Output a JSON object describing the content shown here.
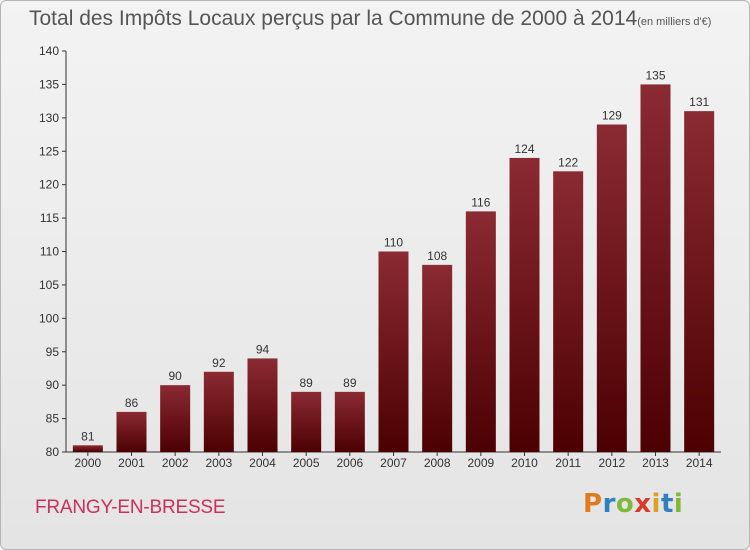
{
  "chart_data": {
    "type": "bar",
    "title": "Total des Impôts Locaux perçus par la Commune de 2000 à 2014",
    "title_unit": "(en milliers d'€)",
    "categories": [
      "2000",
      "2001",
      "2002",
      "2003",
      "2004",
      "2005",
      "2006",
      "2007",
      "2008",
      "2009",
      "2010",
      "2011",
      "2012",
      "2013",
      "2014"
    ],
    "values": [
      81,
      86,
      90,
      92,
      94,
      89,
      89,
      110,
      108,
      116,
      124,
      122,
      129,
      135,
      131
    ],
    "ylim": [
      80,
      140
    ],
    "yticks": [
      80,
      85,
      90,
      95,
      100,
      105,
      110,
      115,
      120,
      125,
      130,
      135,
      140
    ],
    "xlabel": "",
    "ylabel": "",
    "grid": false,
    "bar_color": "#7a1a1f"
  },
  "footer": {
    "commune": "FRANGY-EN-BRESSE",
    "logo_letters": [
      "P",
      "r",
      "o",
      "x",
      "i",
      "t",
      "i"
    ],
    "logo_colors": [
      "#e07a1f",
      "#2f7fc1",
      "#7fb93a",
      "#d93a2b",
      "#e0a01f",
      "#2f7fc1",
      "#7fb93a"
    ]
  }
}
